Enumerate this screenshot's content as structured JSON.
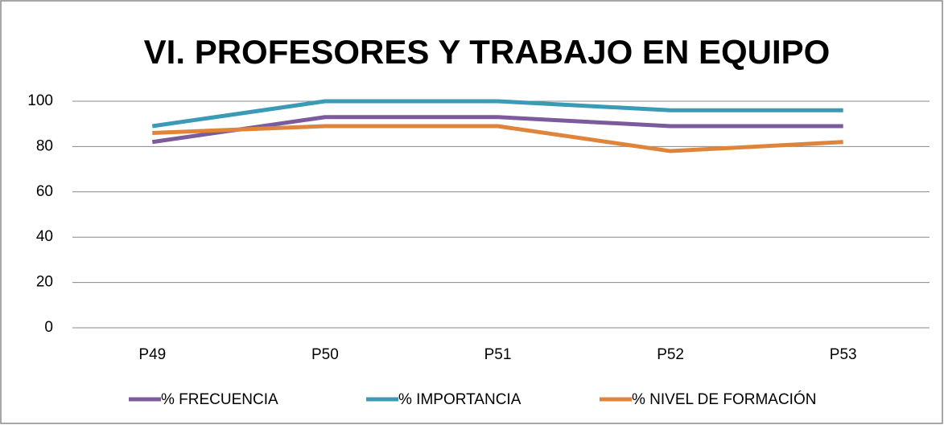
{
  "chart_data": {
    "type": "line",
    "title": "VI. PROFESORES Y TRABAJO EN EQUIPO",
    "categories": [
      "P49",
      "P50",
      "P51",
      "P52",
      "P53"
    ],
    "series": [
      {
        "name": "% FRECUENCIA",
        "color": "#7b5b9c",
        "values": [
          82,
          93,
          93,
          89,
          89
        ]
      },
      {
        "name": "% IMPORTANCIA",
        "color": "#3b9ab5",
        "values": [
          89,
          100,
          100,
          96,
          96
        ]
      },
      {
        "name": "% NIVEL DE FORMACIÓN",
        "color": "#e0843a",
        "values": [
          86,
          89,
          89,
          78,
          82
        ]
      }
    ],
    "ylim": [
      0,
      100
    ],
    "yticks": [
      0,
      20,
      40,
      60,
      80,
      100
    ],
    "grid": true,
    "legend": "bottom"
  }
}
